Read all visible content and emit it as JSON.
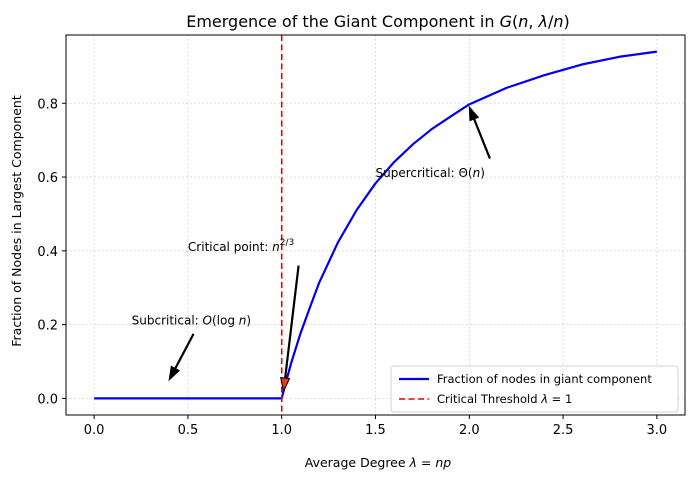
{
  "chart_data": {
    "type": "line",
    "title": "Emergence of the Giant Component in G(n, λ/n)",
    "xlabel": "Average Degree λ = np",
    "ylabel": "Fraction of Nodes in Largest Component",
    "xlim": [
      -0.15,
      3.15
    ],
    "ylim": [
      -0.045,
      0.985
    ],
    "xticks": [
      0.0,
      0.5,
      1.0,
      1.5,
      2.0,
      2.5,
      3.0
    ],
    "xtick_labels": [
      "0.0",
      "0.5",
      "1.0",
      "1.5",
      "2.0",
      "2.5",
      "3.0"
    ],
    "yticks": [
      0.0,
      0.2,
      0.4,
      0.6,
      0.8
    ],
    "ytick_labels": [
      "0.0",
      "0.2",
      "0.4",
      "0.6",
      "0.8"
    ],
    "grid": true,
    "legend_position": "lower-right",
    "series": [
      {
        "name": "Fraction of nodes in giant component",
        "color": "#0000ee",
        "style": "solid",
        "x": [
          0.0,
          0.5,
          1.0,
          1.02,
          1.05,
          1.1,
          1.15,
          1.2,
          1.3,
          1.4,
          1.5,
          1.6,
          1.7,
          1.8,
          1.9,
          2.0,
          2.2,
          2.4,
          2.6,
          2.8,
          3.0
        ],
        "y": [
          0.0,
          0.0,
          0.0,
          0.039,
          0.095,
          0.176,
          0.246,
          0.314,
          0.423,
          0.511,
          0.583,
          0.641,
          0.689,
          0.73,
          0.764,
          0.797,
          0.842,
          0.876,
          0.905,
          0.926,
          0.94
        ]
      },
      {
        "name": "Critical Threshold λ = 1",
        "color": "#ee0000",
        "style": "dashed",
        "vertical_x": 1.0
      }
    ],
    "annotations": [
      {
        "text": "Subcritical: O(log n)",
        "text_x": 0.2,
        "text_y": 0.2,
        "arrow_from": [
          0.53,
          0.175
        ],
        "arrow_to": [
          0.4,
          0.05
        ]
      },
      {
        "text": "Critical point: n^(2/3)",
        "text_x": 0.5,
        "text_y": 0.4,
        "arrow_from": [
          1.09,
          0.36
        ],
        "arrow_to": [
          1.01,
          0.02
        ]
      },
      {
        "text": "Supercritical: Θ(n)",
        "text_x": 1.5,
        "text_y": 0.6,
        "arrow_from": [
          2.11,
          0.65
        ],
        "arrow_to": [
          2.0,
          0.79
        ]
      }
    ]
  }
}
